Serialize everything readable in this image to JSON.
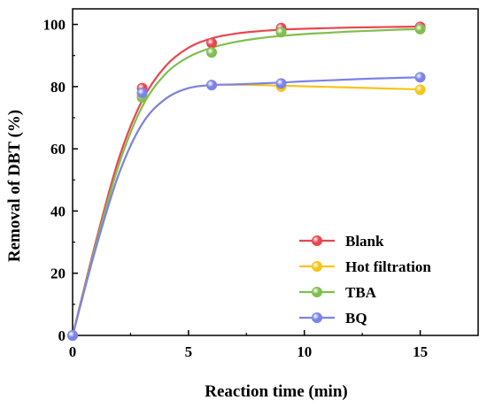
{
  "chart_data": {
    "type": "scatter",
    "title": "",
    "xlabel": "Reaction time (min)",
    "ylabel": "Removal of DBT (%)",
    "xlim": [
      0,
      17.5
    ],
    "ylim": [
      0,
      105
    ],
    "xticks": [
      0,
      5,
      10,
      15
    ],
    "yticks": [
      0,
      20,
      40,
      60,
      80,
      100
    ],
    "legend_position": "lower-right",
    "grid": false,
    "series": [
      {
        "name": "Blank",
        "color": "#e8474f",
        "x": [
          0,
          3,
          6,
          9,
          15
        ],
        "y": [
          0,
          79.5,
          94,
          98.8,
          99.2
        ],
        "fit_x": [
          0,
          1,
          2,
          3,
          4,
          5,
          6,
          7,
          8,
          9,
          10,
          11,
          12,
          13,
          14,
          15
        ],
        "fit_y": [
          0,
          30,
          57,
          75.5,
          86.5,
          92.5,
          95.5,
          97,
          97.8,
          98.3,
          98.6,
          98.8,
          99,
          99.1,
          99.2,
          99.3
        ]
      },
      {
        "name": "Hot filtration",
        "color": "#f5c518",
        "x": [
          0,
          3,
          6,
          9,
          15
        ],
        "y": [
          0,
          77.5,
          80.5,
          80,
          79
        ],
        "fit_x": [
          0,
          1,
          2,
          3,
          4,
          5,
          6,
          7,
          8,
          9,
          10,
          11,
          12,
          13,
          14,
          15
        ],
        "fit_y": [
          0,
          28,
          52,
          68,
          76,
          79.5,
          80.5,
          80.6,
          80.5,
          80.3,
          80.1,
          79.9,
          79.7,
          79.5,
          79.3,
          79.1
        ]
      },
      {
        "name": "TBA",
        "color": "#7fbf4f",
        "x": [
          0,
          3,
          6,
          9,
          15
        ],
        "y": [
          0,
          76.5,
          91,
          97.5,
          98.5
        ],
        "fit_x": [
          0,
          1,
          2,
          3,
          4,
          5,
          6,
          7,
          8,
          9,
          10,
          11,
          12,
          13,
          14,
          15
        ],
        "fit_y": [
          0,
          29,
          55,
          73.5,
          84,
          89.5,
          92.5,
          94.3,
          95.5,
          96.3,
          96.9,
          97.3,
          97.7,
          98,
          98.3,
          98.5
        ]
      },
      {
        "name": "BQ",
        "color": "#7b83e8",
        "x": [
          0,
          3,
          6,
          9,
          15
        ],
        "y": [
          0,
          78,
          80.5,
          81,
          83
        ],
        "fit_x": [
          0,
          1,
          2,
          3,
          4,
          5,
          6,
          7,
          8,
          9,
          10,
          11,
          12,
          13,
          14,
          15
        ],
        "fit_y": [
          0,
          28,
          52,
          68,
          76,
          79.5,
          80.5,
          80.7,
          81,
          81.3,
          81.7,
          82,
          82.3,
          82.6,
          82.8,
          83
        ]
      }
    ]
  }
}
